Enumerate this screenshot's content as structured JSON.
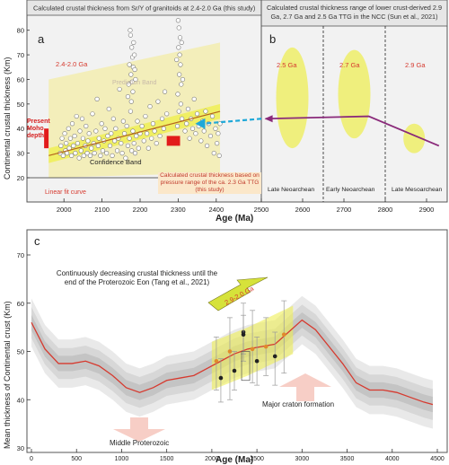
{
  "colors": {
    "yellow_band": "#f4eb8c",
    "yellow_band_strong": "#eeee55",
    "red_line": "#d63a2f",
    "purple_line": "#8a2a7a",
    "cyan_arrow": "#1fa8d8",
    "red_box": "#e21b1b",
    "gray_band": "#c9c9c9",
    "peach_arrow": "#f6c9c0",
    "panel_bg": "#efefef"
  },
  "chart_data": [
    {
      "type": "scatter",
      "panel": "a",
      "header": "Calculated crustal thickness from Sr/Y of granitoids at 2.4-2.0 Ga (this study)",
      "ylabel": "Continental crustal thickness (Km)",
      "xlim": [
        1950,
        2450
      ],
      "ylim": [
        20,
        85
      ],
      "xticks": [
        2000,
        2100,
        2200,
        2300,
        2400
      ],
      "yticks": [
        20,
        30,
        40,
        50,
        60,
        70,
        80
      ],
      "age_range_label": "2.4-2.0 Ga",
      "prediction_band_label": "Prediction Band",
      "confidence_band_label": "Confidence Band",
      "linear_fit_label": "Linear fit curve",
      "present_moho_label": "Present Moho depth",
      "box_label": "Calculated crustal thickness based on pressure range of the ca. 2.3 Ga TTG (this study)",
      "fit_line": {
        "x": [
          1960,
          2410
        ],
        "y": [
          29,
          47
        ]
      },
      "present_moho": {
        "x": 1955,
        "y_range": [
          32,
          40
        ]
      },
      "ttg_box": {
        "x_range": [
          2270,
          2305
        ],
        "y_range": [
          33,
          37
        ]
      },
      "points": [
        [
          1990,
          30
        ],
        [
          1992,
          33
        ],
        [
          1995,
          36
        ],
        [
          1998,
          29
        ],
        [
          2002,
          38
        ],
        [
          2004,
          31
        ],
        [
          2006,
          34
        ],
        [
          2008,
          30
        ],
        [
          2012,
          40
        ],
        [
          2014,
          32
        ],
        [
          2017,
          36
        ],
        [
          2020,
          29
        ],
        [
          2022,
          42
        ],
        [
          2025,
          33
        ],
        [
          2028,
          37
        ],
        [
          2030,
          30
        ],
        [
          2033,
          45
        ],
        [
          2036,
          34
        ],
        [
          2040,
          28
        ],
        [
          2042,
          39
        ],
        [
          2045,
          31
        ],
        [
          2048,
          44
        ],
        [
          2050,
          36
        ],
        [
          2052,
          29
        ],
        [
          2056,
          33
        ],
        [
          2058,
          41
        ],
        [
          2061,
          30
        ],
        [
          2063,
          35
        ],
        [
          2066,
          38
        ],
        [
          2069,
          29
        ],
        [
          2072,
          32
        ],
        [
          2075,
          46
        ],
        [
          2078,
          34
        ],
        [
          2080,
          30
        ],
        [
          2084,
          39
        ],
        [
          2087,
          52
        ],
        [
          2090,
          33
        ],
        [
          2092,
          36
        ],
        [
          2096,
          29
        ],
        [
          2099,
          42
        ],
        [
          2102,
          31
        ],
        [
          2105,
          35
        ],
        [
          2108,
          40
        ],
        [
          2112,
          30
        ],
        [
          2115,
          37
        ],
        [
          2118,
          48
        ],
        [
          2121,
          33
        ],
        [
          2124,
          38
        ],
        [
          2127,
          29
        ],
        [
          2130,
          44
        ],
        [
          2133,
          35
        ],
        [
          2136,
          40
        ],
        [
          2140,
          31
        ],
        [
          2143,
          36
        ],
        [
          2146,
          56
        ],
        [
          2150,
          34
        ],
        [
          2153,
          30
        ],
        [
          2156,
          43
        ],
        [
          2159,
          38
        ],
        [
          2162,
          28
        ],
        [
          2165,
          41
        ],
        [
          2168,
          33
        ],
        [
          2172,
          36
        ],
        [
          2175,
          47
        ],
        [
          2178,
          31
        ],
        [
          2181,
          39
        ],
        [
          2184,
          34
        ],
        [
          2187,
          30
        ],
        [
          2190,
          37
        ],
        [
          2193,
          43
        ],
        [
          2196,
          32
        ],
        [
          2200,
          38
        ],
        [
          2175,
          78
        ],
        [
          2178,
          73
        ],
        [
          2180,
          69
        ],
        [
          2182,
          65
        ],
        [
          2176,
          62
        ],
        [
          2179,
          59
        ],
        [
          2181,
          55
        ],
        [
          2177,
          51
        ],
        [
          2172,
          66
        ],
        [
          2185,
          70
        ],
        [
          2170,
          58
        ],
        [
          2188,
          60
        ],
        [
          2168,
          53
        ],
        [
          2183,
          75
        ],
        [
          2174,
          80
        ],
        [
          2186,
          64
        ],
        [
          2205,
          41
        ],
        [
          2210,
          35
        ],
        [
          2214,
          45
        ],
        [
          2218,
          38
        ],
        [
          2222,
          32
        ],
        [
          2226,
          49
        ],
        [
          2230,
          36
        ],
        [
          2234,
          42
        ],
        [
          2238,
          39
        ],
        [
          2243,
          34
        ],
        [
          2247,
          51
        ],
        [
          2252,
          37
        ],
        [
          2258,
          44
        ],
        [
          2262,
          40
        ],
        [
          2265,
          55
        ],
        [
          2270,
          46
        ],
        [
          2300,
          84
        ],
        [
          2302,
          81
        ],
        [
          2305,
          77
        ],
        [
          2301,
          73
        ],
        [
          2304,
          70
        ],
        [
          2306,
          66
        ],
        [
          2303,
          62
        ],
        [
          2308,
          58
        ],
        [
          2299,
          54
        ],
        [
          2307,
          50
        ],
        [
          2302,
          47
        ],
        [
          2310,
          44
        ],
        [
          2298,
          41
        ],
        [
          2309,
          75
        ],
        [
          2296,
          68
        ],
        [
          2312,
          60
        ],
        [
          2318,
          39
        ],
        [
          2322,
          42
        ],
        [
          2326,
          48
        ],
        [
          2330,
          36
        ],
        [
          2334,
          44
        ],
        [
          2338,
          40
        ],
        [
          2342,
          52
        ],
        [
          2346,
          38
        ],
        [
          2350,
          46
        ],
        [
          2354,
          41
        ],
        [
          2360,
          35
        ],
        [
          2364,
          43
        ],
        [
          2368,
          39
        ],
        [
          2372,
          47
        ],
        [
          2376,
          33
        ],
        [
          2380,
          42
        ],
        [
          2385,
          37
        ],
        [
          2390,
          45
        ],
        [
          2394,
          30
        ],
        [
          2398,
          40
        ],
        [
          2402,
          34
        ],
        [
          2405,
          38
        ],
        [
          2408,
          29
        ],
        [
          2410,
          42
        ]
      ]
    },
    {
      "type": "area",
      "panel": "b",
      "header": "Calculated crustal thickness range of lower crust-derived 2.9 Ga, 2.7 Ga and 2.5 Ga TTG in the NCC (Sun et al., 2021)",
      "xlabel": "Age (Ma)",
      "xlim": [
        2500,
        2950
      ],
      "xticks": [
        2500,
        2600,
        2700,
        2800,
        2900
      ],
      "groups": [
        {
          "name": "2.5 Ga",
          "era": "Late Neoarchean",
          "y_range": [
            32,
            73
          ]
        },
        {
          "name": "2.7 Ga",
          "era": "Early Neoarchean",
          "y_range": [
            36,
            72
          ]
        },
        {
          "name": "2.9 Ga",
          "era": "Late Mesoarchean",
          "y_range": [
            30,
            42
          ]
        }
      ],
      "trend": {
        "x": [
          2510,
          2760,
          2930
        ],
        "y": [
          44,
          45,
          33
        ]
      },
      "arrow_to_panel_a": {
        "x": [
          2500,
          2345
        ],
        "y": [
          44,
          42
        ]
      }
    },
    {
      "type": "line",
      "panel": "c",
      "xlabel": "Age (Ma)",
      "ylabel": "Mean thickness of Continental crust (Km)",
      "xlim": [
        0,
        4500
      ],
      "ylim": [
        30,
        70
      ],
      "xticks": [
        0,
        500,
        1000,
        1500,
        2000,
        2500,
        3000,
        3500,
        4000,
        4500
      ],
      "yticks": [
        30,
        40,
        50,
        60,
        70
      ],
      "annotation": "Continuously decreasing crustal thickness until the end of the Proterozoic Eon (Tang et al., 2021)",
      "arrow_label": "2.9-2.0 Ga",
      "labels": {
        "middle": "Middle Proterozoic",
        "major": "Major craton formation"
      },
      "curve": {
        "x": [
          0,
          150,
          300,
          450,
          600,
          750,
          900,
          1050,
          1200,
          1350,
          1500,
          1650,
          1800,
          1950,
          2100,
          2250,
          2400,
          2550,
          2700,
          2850,
          3000,
          3150,
          3300,
          3450,
          3600,
          3750,
          3900,
          4050,
          4200,
          4350,
          4450
        ],
        "y": [
          56,
          50.5,
          47.5,
          47.5,
          48,
          47,
          45,
          42.5,
          41.5,
          42.5,
          44,
          44.5,
          45,
          46.5,
          48,
          49.5,
          50.5,
          51,
          51.5,
          54,
          56.5,
          54.5,
          51,
          47.5,
          43.5,
          42,
          42,
          41.5,
          40.5,
          39.5,
          39
        ]
      },
      "points": [
        {
          "x": 2050,
          "y": 48,
          "color": "orange",
          "err": [
            6,
            5
          ]
        },
        {
          "x": 2200,
          "y": 50,
          "color": "orange",
          "err": [
            10,
            7
          ]
        },
        {
          "x": 2450,
          "y": 50.5,
          "color": "orange",
          "err": [
            7,
            8
          ]
        },
        {
          "x": 2600,
          "y": 51,
          "color": "orange",
          "err": [
            6,
            6
          ]
        },
        {
          "x": 2800,
          "y": 53.5,
          "color": "orange",
          "err": [
            8,
            7
          ]
        },
        {
          "x": 2100,
          "y": 44.5,
          "color": "black",
          "err": [
            5,
            4
          ]
        },
        {
          "x": 2250,
          "y": 46,
          "color": "black",
          "err": [
            4,
            4
          ]
        },
        {
          "x": 2350,
          "y": 54,
          "color": "black",
          "err": [
            6,
            6
          ]
        },
        {
          "x": 2500,
          "y": 48,
          "color": "black",
          "err": [
            5,
            5
          ]
        },
        {
          "x": 2700,
          "y": 49,
          "color": "black",
          "err": [
            6,
            5
          ]
        },
        {
          "x": 2350,
          "y": 53.5,
          "color": "black",
          "err": [
            4,
            4
          ]
        }
      ]
    }
  ]
}
